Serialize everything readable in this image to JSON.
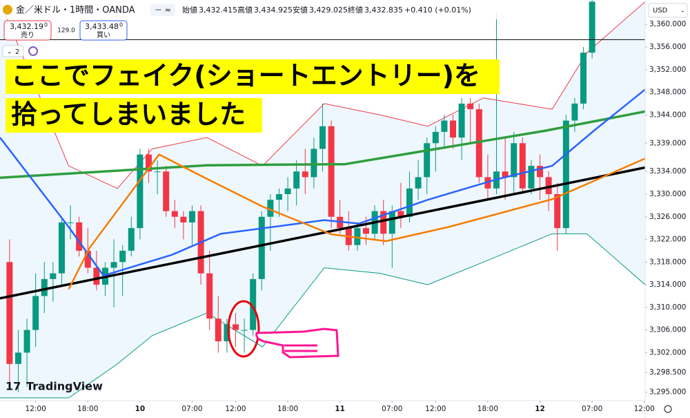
{
  "chart_data": {
    "type": "candlestick",
    "symbol": "金／米ドル・1時間・OANDA",
    "header": {
      "open_label": "始値",
      "open": "3,432.415",
      "high_label": "高値",
      "high": "3,434.925",
      "low_label": "安値",
      "low": "3,429.025",
      "close_label": "終値",
      "close": "3,432.835",
      "change": "+0.410 (+0.01%)",
      "sell": "3,432.19",
      "sell_sup": "0",
      "sell_label": "売り",
      "spread": "129.0",
      "buy": "3,433.48",
      "buy_sup": "0",
      "buy_label": "買い",
      "indicators": "2",
      "currency": "USD"
    },
    "annotations": [
      "ここでフェイク(ショートエントリー)を",
      "拾ってしまいました"
    ],
    "logo": "TradingView",
    "up_color": "#089981",
    "down_color": "#f23645",
    "ohlc": [
      [
        3318,
        3322,
        3296,
        3300
      ],
      [
        3300,
        3306,
        3295,
        3302
      ],
      [
        3302,
        3308,
        3296,
        3306
      ],
      [
        3306,
        3316,
        3303,
        3312
      ],
      [
        3312,
        3318,
        3309,
        3315
      ],
      [
        3315,
        3318,
        3311,
        3316
      ],
      [
        3316,
        3326,
        3314,
        3325
      ],
      [
        3325,
        3328,
        3322,
        3325
      ],
      [
        3325,
        3326,
        3319,
        3320
      ],
      [
        3320,
        3324,
        3316,
        3317
      ],
      [
        3317,
        3320,
        3313,
        3314
      ],
      [
        3314,
        3318,
        3312,
        3317
      ],
      [
        3317,
        3322,
        3310,
        3318
      ],
      [
        3318,
        3321,
        3312,
        3320
      ],
      [
        3320,
        3326,
        3319,
        3324
      ],
      [
        3324,
        3338,
        3322,
        3337
      ],
      [
        3337,
        3338,
        3332,
        3334
      ],
      [
        3334,
        3336,
        3330,
        3334
      ],
      [
        3334,
        3335,
        3326,
        3327
      ],
      [
        3327,
        3329,
        3324,
        3326
      ],
      [
        3326,
        3327,
        3322,
        3325
      ],
      [
        3325,
        3328,
        3321,
        3327
      ],
      [
        3327,
        3328,
        3314,
        3316
      ],
      [
        3316,
        3320,
        3306,
        3308
      ],
      [
        3308,
        3312,
        3302,
        3304
      ],
      [
        3304,
        3308,
        3302,
        3307
      ],
      [
        3307,
        3309,
        3303,
        3306
      ],
      [
        3306,
        3308,
        3302,
        3306
      ],
      [
        3306,
        3316,
        3305,
        3315
      ],
      [
        3315,
        3327,
        3313,
        3326
      ],
      [
        3326,
        3330,
        3320,
        3329
      ],
      [
        3329,
        3331,
        3326,
        3330
      ],
      [
        3330,
        3333,
        3327,
        3331
      ],
      [
        3331,
        3336,
        3328,
        3334
      ],
      [
        3334,
        3338,
        3330,
        3333
      ],
      [
        3333,
        3340,
        3331,
        3338
      ],
      [
        3338,
        3346,
        3334,
        3342
      ],
      [
        3342,
        3343,
        3324,
        3326
      ],
      [
        3326,
        3329,
        3323,
        3324
      ],
      [
        3324,
        3327,
        3320,
        3321
      ],
      [
        3321,
        3325,
        3320,
        3324
      ],
      [
        3324,
        3326,
        3321,
        3323
      ],
      [
        3323,
        3328,
        3322,
        3327
      ],
      [
        3327,
        3329,
        3321,
        3323
      ],
      [
        3323,
        3328,
        3317,
        3327
      ],
      [
        3327,
        3332,
        3324,
        3326
      ],
      [
        3326,
        3334,
        3325,
        3331
      ],
      [
        3331,
        3336,
        3329,
        3333
      ],
      [
        3333,
        3340,
        3330,
        3339
      ],
      [
        3339,
        3342,
        3334,
        3341
      ],
      [
        3341,
        3344,
        3338,
        3343
      ],
      [
        3343,
        3344,
        3338,
        3340
      ],
      [
        3340,
        3347,
        3336,
        3346
      ],
      [
        3346,
        3347,
        3339,
        3345
      ],
      [
        3345,
        3346,
        3332,
        3333
      ],
      [
        3333,
        3337,
        3329,
        3331
      ],
      [
        3331,
        3362,
        3330,
        3334
      ],
      [
        3334,
        3340,
        3329,
        3333
      ],
      [
        3333,
        3341,
        3330,
        3339
      ],
      [
        3339,
        3340,
        3330,
        3331
      ],
      [
        3331,
        3336,
        3330,
        3335
      ],
      [
        3335,
        3337,
        3329,
        3333
      ],
      [
        3333,
        3334,
        3327,
        3330
      ],
      [
        3330,
        3332,
        3320,
        3324
      ],
      [
        3324,
        3344,
        3323,
        3343
      ],
      [
        3343,
        3347,
        3341,
        3346
      ],
      [
        3346,
        3356,
        3345,
        3355
      ],
      [
        3355,
        3366,
        3354,
        3364
      ]
    ],
    "bands": {
      "color_upper": "#f23645",
      "color_lower": "#089981",
      "fill": "#e3f2fd",
      "x": [
        -1.1,
        6.8,
        12.4,
        16.4,
        22.7,
        29.1,
        36.2,
        42.6,
        48.1,
        54.5,
        62.4,
        66.4,
        73.1
      ],
      "upper": [
        3364,
        3335,
        3331,
        3338,
        3340,
        3335,
        3346,
        3344,
        3342,
        3347,
        3345,
        3355,
        3364
      ],
      "lower": [
        3294,
        3294,
        3300,
        3305,
        3309,
        3303,
        3317,
        3316,
        3314,
        3318,
        3323,
        3323,
        3314
      ]
    },
    "series": [
      {
        "color": "#000000",
        "width": 3.5,
        "x": [
          -1.1,
          73.1
        ],
        "values": [
          3311.6,
          3334.7
        ]
      },
      {
        "color": "#2e9e3e",
        "width": 3.5,
        "x": [
          -1.1,
          22.7,
          38.6,
          61.6,
          73.1
        ],
        "values": [
          3332.9,
          3335.1,
          3335.3,
          3341.2,
          3344.6
        ]
      },
      {
        "color": "#2962ff",
        "width": 2.5,
        "x": [
          -1.1,
          6.8,
          10.8,
          18.7,
          24.3,
          36.2,
          40.2,
          48.1,
          56.0,
          62.4,
          67.2,
          73.1
        ],
        "values": [
          3340,
          3324.2,
          3315.6,
          3319.3,
          3323,
          3325.4,
          3324.8,
          3329,
          3332.6,
          3335,
          3341.2,
          3348.5
        ]
      },
      {
        "color": "#f57c00",
        "width": 2.5,
        "x": [
          6.8,
          9.2,
          17.2,
          22.7,
          29.1,
          37.0,
          43.3,
          50.5,
          62.4,
          73.1
        ],
        "values": [
          3313.2,
          3320.5,
          3337,
          3332.7,
          3327.8,
          3322.9,
          3321.7,
          3324.2,
          3329.1,
          3336.3
        ]
      }
    ],
    "price_line": 3357.3,
    "xlim": [
      -1.1,
      73.1
    ],
    "ylim": [
      3293.5,
      3364.3
    ],
    "xticks": [
      {
        "value": 3,
        "label": "12:00"
      },
      {
        "value": 9,
        "label": "18:00"
      },
      {
        "value": 15,
        "label": "10"
      },
      {
        "value": 21,
        "label": "07:00"
      },
      {
        "value": 26,
        "label": "12:00"
      },
      {
        "value": 32,
        "label": "18:00"
      },
      {
        "value": 38,
        "label": "11"
      },
      {
        "value": 44,
        "label": "07:00"
      },
      {
        "value": 49,
        "label": "12:00"
      },
      {
        "value": 55,
        "label": "18:00"
      },
      {
        "value": 61,
        "label": "12"
      },
      {
        "value": 67,
        "label": "07:00"
      },
      {
        "value": 73,
        "label": "12:00"
      }
    ],
    "yticks": [
      {
        "value": 3360,
        "label": "3,360.000"
      },
      {
        "value": 3356,
        "label": "3,356.000"
      },
      {
        "value": 3352,
        "label": "3,352.000"
      },
      {
        "value": 3348,
        "label": "3,348.000"
      },
      {
        "value": 3344,
        "label": "3,344.000"
      },
      {
        "value": 3339,
        "label": "3,339.000"
      },
      {
        "value": 3334,
        "label": "3,334.000"
      },
      {
        "value": 3330,
        "label": "3,330.000"
      },
      {
        "value": 3326,
        "label": "3,326.000"
      },
      {
        "value": 3322,
        "label": "3,322.000"
      },
      {
        "value": 3318,
        "label": "3,318.000"
      },
      {
        "value": 3314,
        "label": "3,314.000"
      },
      {
        "value": 3310,
        "label": "3,310.000"
      },
      {
        "value": 3306,
        "label": "3,306.000"
      },
      {
        "value": 3302,
        "label": "3,302.000"
      },
      {
        "value": 3298.5,
        "label": "3,298.500"
      },
      {
        "value": 3295,
        "label": "3,295.000"
      }
    ]
  }
}
